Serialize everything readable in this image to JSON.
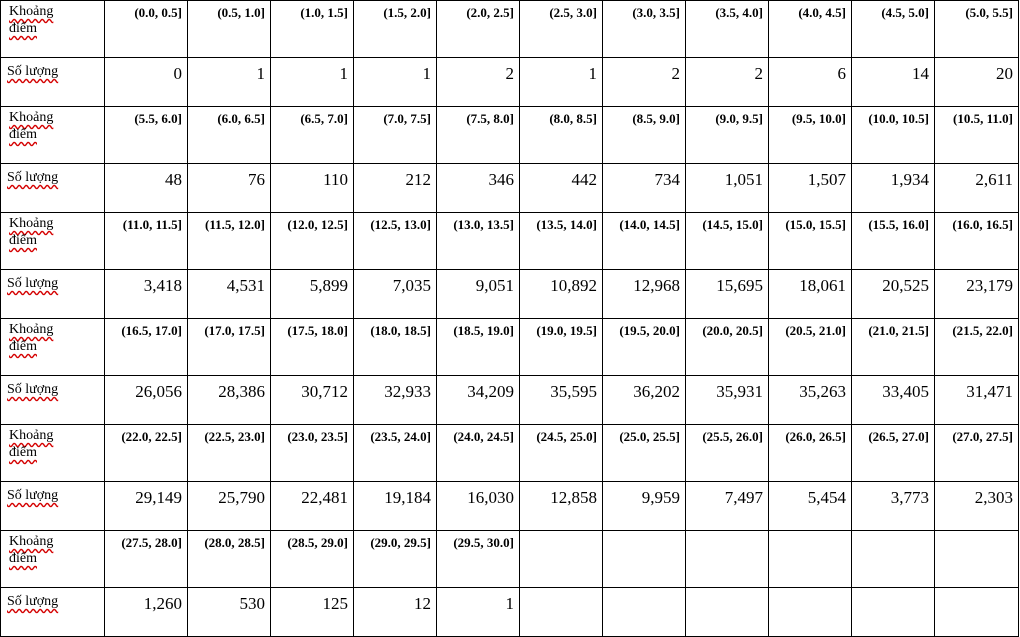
{
  "labels": {
    "range_line1": "Khoảng",
    "range_line2": "điểm",
    "count": "Số lượng"
  },
  "rows": [
    {
      "ranges": [
        "(0.0, 0.5]",
        "(0.5, 1.0]",
        "(1.0, 1.5]",
        "(1.5, 2.0]",
        "(2.0, 2.5]",
        "(2.5, 3.0]",
        "(3.0, 3.5]",
        "(3.5, 4.0]",
        "(4.0, 4.5]",
        "(4.5, 5.0]",
        "(5.0, 5.5]"
      ],
      "counts": [
        "0",
        "1",
        "1",
        "1",
        "2",
        "1",
        "2",
        "2",
        "6",
        "14",
        "20"
      ]
    },
    {
      "ranges": [
        "(5.5, 6.0]",
        "(6.0, 6.5]",
        "(6.5, 7.0]",
        "(7.0, 7.5]",
        "(7.5, 8.0]",
        "(8.0, 8.5]",
        "(8.5, 9.0]",
        "(9.0, 9.5]",
        "(9.5, 10.0]",
        "(10.0, 10.5]",
        "(10.5, 11.0]"
      ],
      "counts": [
        "48",
        "76",
        "110",
        "212",
        "346",
        "442",
        "734",
        "1,051",
        "1,507",
        "1,934",
        "2,611"
      ]
    },
    {
      "ranges": [
        "(11.0, 11.5]",
        "(11.5, 12.0]",
        "(12.0, 12.5]",
        "(12.5, 13.0]",
        "(13.0, 13.5]",
        "(13.5, 14.0]",
        "(14.0, 14.5]",
        "(14.5, 15.0]",
        "(15.0, 15.5]",
        "(15.5, 16.0]",
        "(16.0, 16.5]"
      ],
      "counts": [
        "3,418",
        "4,531",
        "5,899",
        "7,035",
        "9,051",
        "10,892",
        "12,968",
        "15,695",
        "18,061",
        "20,525",
        "23,179"
      ]
    },
    {
      "ranges": [
        "(16.5, 17.0]",
        "(17.0, 17.5]",
        "(17.5, 18.0]",
        "(18.0, 18.5]",
        "(18.5, 19.0]",
        "(19.0, 19.5]",
        "(19.5, 20.0]",
        "(20.0, 20.5]",
        "(20.5, 21.0]",
        "(21.0, 21.5]",
        "(21.5, 22.0]"
      ],
      "counts": [
        "26,056",
        "28,386",
        "30,712",
        "32,933",
        "34,209",
        "35,595",
        "36,202",
        "35,931",
        "35,263",
        "33,405",
        "31,471"
      ]
    },
    {
      "ranges": [
        "(22.0, 22.5]",
        "(22.5, 23.0]",
        "(23.0, 23.5]",
        "(23.5, 24.0]",
        "(24.0, 24.5]",
        "(24.5, 25.0]",
        "(25.0, 25.5]",
        "(25.5, 26.0]",
        "(26.0, 26.5]",
        "(26.5, 27.0]",
        "(27.0, 27.5]"
      ],
      "counts": [
        "29,149",
        "25,790",
        "22,481",
        "19,184",
        "16,030",
        "12,858",
        "9,959",
        "7,497",
        "5,454",
        "3,773",
        "2,303"
      ]
    },
    {
      "ranges": [
        "(27.5, 28.0]",
        "(28.0, 28.5]",
        "(28.5, 29.0]",
        "(29.0, 29.5]",
        "(29.5, 30.0]",
        "",
        "",
        "",
        "",
        "",
        ""
      ],
      "counts": [
        "1,260",
        "530",
        "125",
        "12",
        "1",
        "",
        "",
        "",
        "",
        "",
        ""
      ]
    }
  ]
}
